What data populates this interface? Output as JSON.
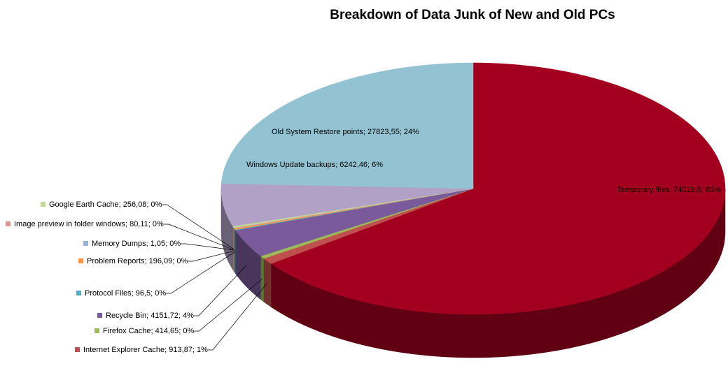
{
  "chart_data": {
    "type": "pie",
    "title": "Breakdown of Data Junk of New and Old PCs",
    "values": [
      74018.5,
      913.87,
      414.65,
      4151.72,
      96.5,
      196.09,
      1.05,
      80.11,
      256.08,
      6242.46,
      27823.55
    ],
    "value_labels": [
      "Temporary files; 74018,5; 65%",
      "Internet Explorer Cache; 913,87; 1%",
      "Firefox Cache; 414,65; 0%",
      "Recycle Bin; 4151,72; 4%",
      "Protocol Files; 96,5; 0%",
      "Problem Reports; 196,09; 0%",
      "Memory Dumps; 1,05; 0%",
      "Image preview in folder windows; 80,11; 0%",
      "Google Earth Cache; 256,08; 0%",
      "Windows Update backups; 6242,46; 6%",
      "Old System Restore points; 27823,55; 24%"
    ],
    "colors": [
      "#a3001f",
      "#c0504d",
      "#9bbb59",
      "#7a5a9a",
      "#4bacc6",
      "#f79646",
      "#95b3d7",
      "#d99694",
      "#c3d69b",
      "#b2a1c7",
      "#93c3d3"
    ]
  }
}
